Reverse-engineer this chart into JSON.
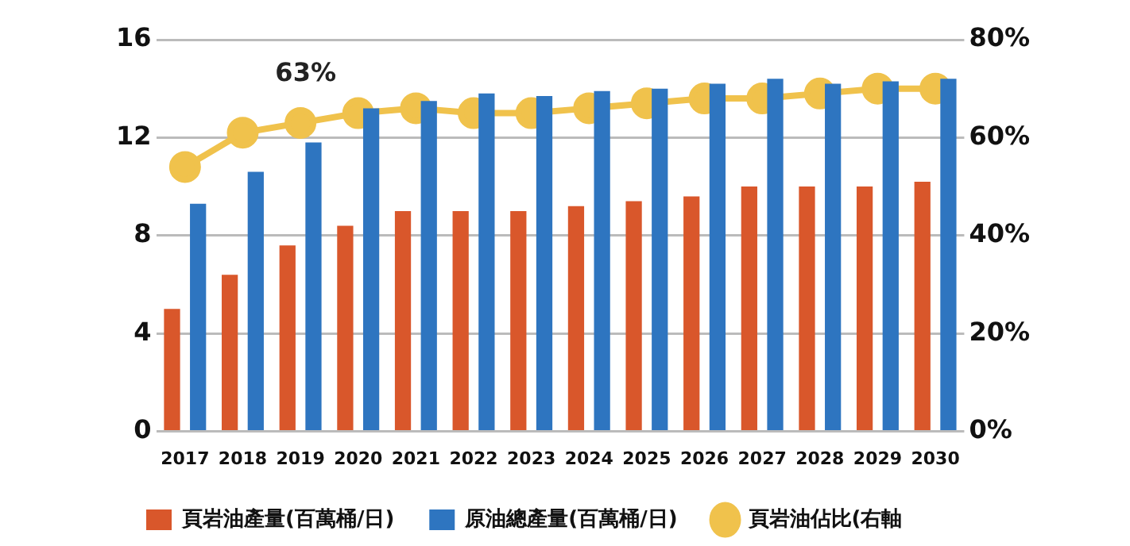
{
  "chart_data": {
    "type": "bar",
    "categories": [
      "2017",
      "2018",
      "2019",
      "2020",
      "2021",
      "2022",
      "2023",
      "2024",
      "2025",
      "2026",
      "2027",
      "2028",
      "2029",
      "2030"
    ],
    "series": [
      {
        "name": "頁岩油產量(百萬桶/日)",
        "color": "#d9572b",
        "values": [
          5.0,
          6.4,
          7.6,
          8.4,
          9.0,
          9.0,
          9.0,
          9.2,
          9.4,
          9.6,
          10.0,
          10.0,
          10.0,
          10.2
        ]
      },
      {
        "name": "原油總產量(百萬桶/日)",
        "color": "#2e75c0",
        "values": [
          9.3,
          10.6,
          11.8,
          13.2,
          13.5,
          13.8,
          13.7,
          13.9,
          14.0,
          14.2,
          14.4,
          14.2,
          14.3,
          14.4
        ]
      },
      {
        "name": "頁岩油佔比(右軸",
        "type": "line",
        "axis": "y2",
        "color": "#f0c24c",
        "values": [
          54,
          61,
          63,
          65,
          66,
          65,
          65,
          66,
          67,
          68,
          68,
          69,
          70,
          70
        ]
      }
    ],
    "ylim": [
      0,
      16
    ],
    "yticks": [
      0,
      4,
      8,
      12,
      16
    ],
    "y2lim": [
      0,
      80
    ],
    "y2ticks": [
      {
        "value": 0,
        "label": "0%"
      },
      {
        "value": 20,
        "label": "20%"
      },
      {
        "value": 40,
        "label": "40%"
      },
      {
        "value": 60,
        "label": "60%"
      },
      {
        "value": 80,
        "label": "80%"
      }
    ],
    "annotations": [
      "63%"
    ],
    "grid": "y",
    "legend": "bottom",
    "marker": "circle"
  }
}
